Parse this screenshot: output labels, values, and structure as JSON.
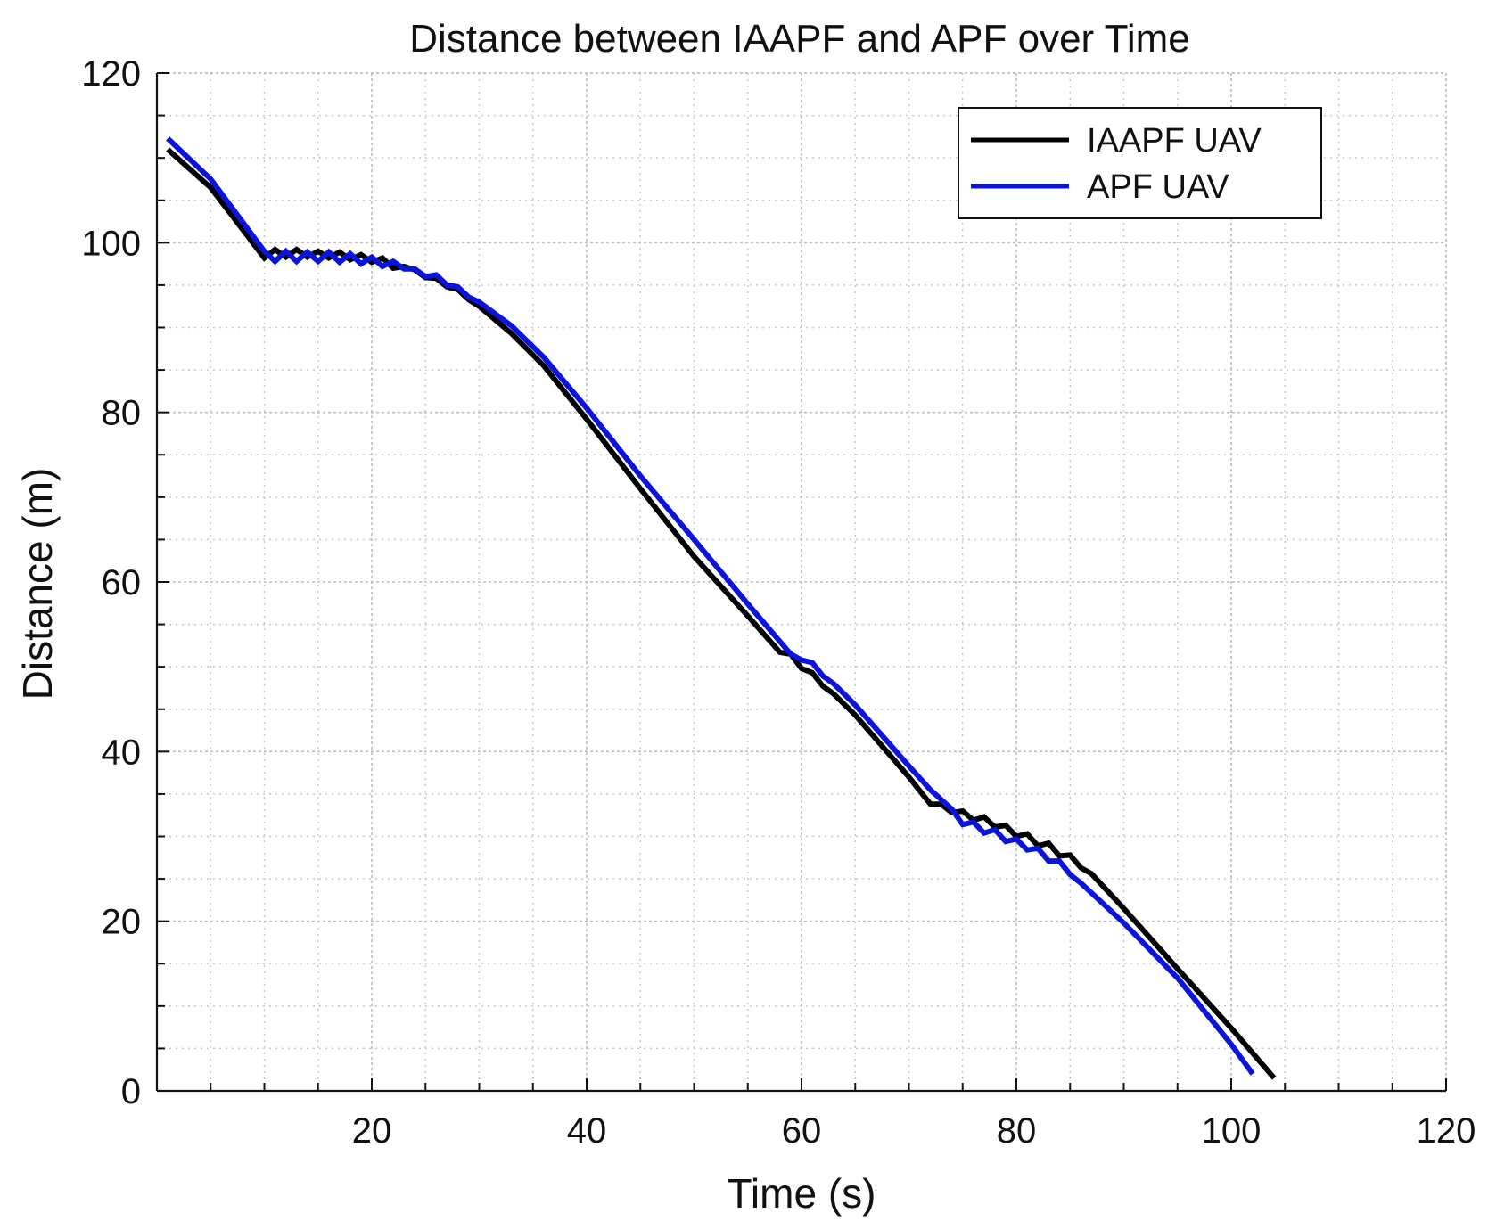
{
  "chart_data": {
    "type": "line",
    "title": "Distance between IAAPF and APF over Time",
    "xlabel": "Time (s)",
    "ylabel": "Distance (m)",
    "xlim": [
      0,
      120
    ],
    "ylim": [
      0,
      120
    ],
    "xticks": [
      20,
      40,
      60,
      80,
      100,
      120
    ],
    "yticks": [
      0,
      20,
      40,
      60,
      80,
      100,
      120
    ],
    "x_minor_step": 5,
    "y_minor_step": 5,
    "grid": true,
    "legend_position": "top-right",
    "series": [
      {
        "name": "IAAPF UAV",
        "color": "#000000",
        "points": [
          [
            1,
            111
          ],
          [
            5,
            106.5
          ],
          [
            10,
            98.2
          ],
          [
            11,
            99.2
          ],
          [
            12,
            98.3
          ],
          [
            13,
            99.2
          ],
          [
            14,
            98.3
          ],
          [
            15,
            99.0
          ],
          [
            16,
            98.2
          ],
          [
            17,
            98.9
          ],
          [
            18,
            98.0
          ],
          [
            19,
            98.6
          ],
          [
            20,
            97.7
          ],
          [
            21,
            98.2
          ],
          [
            22,
            97.0
          ],
          [
            23,
            97.2
          ],
          [
            24,
            96.8
          ],
          [
            25,
            95.9
          ],
          [
            26,
            95.8
          ],
          [
            27,
            94.8
          ],
          [
            28,
            94.5
          ],
          [
            29,
            93.3
          ],
          [
            30,
            92.5
          ],
          [
            33,
            89.3
          ],
          [
            36,
            85.5
          ],
          [
            40,
            79.2
          ],
          [
            45,
            71.0
          ],
          [
            50,
            63.0
          ],
          [
            55,
            56.0
          ],
          [
            58,
            51.7
          ],
          [
            59,
            51.5
          ],
          [
            60,
            49.8
          ],
          [
            61,
            49.3
          ],
          [
            62,
            47.7
          ],
          [
            63,
            46.8
          ],
          [
            65,
            44.3
          ],
          [
            70,
            37.0
          ],
          [
            72,
            33.8
          ],
          [
            73,
            33.8
          ],
          [
            74,
            32.8
          ],
          [
            75,
            33.0
          ],
          [
            76,
            31.9
          ],
          [
            77,
            32.3
          ],
          [
            78,
            31.1
          ],
          [
            79,
            31.3
          ],
          [
            80,
            30.0
          ],
          [
            81,
            30.3
          ],
          [
            82,
            28.9
          ],
          [
            83,
            29.2
          ],
          [
            84,
            27.7
          ],
          [
            85,
            27.8
          ],
          [
            86,
            26.3
          ],
          [
            87,
            25.6
          ],
          [
            90,
            21.5
          ],
          [
            95,
            14.4
          ],
          [
            100,
            7.4
          ],
          [
            104,
            1.5
          ]
        ]
      },
      {
        "name": "APF UAV",
        "color": "#0a14dc",
        "points": [
          [
            1,
            112.3
          ],
          [
            5,
            107.5
          ],
          [
            10,
            99.0
          ],
          [
            11,
            97.8
          ],
          [
            12,
            99.0
          ],
          [
            13,
            97.8
          ],
          [
            14,
            98.9
          ],
          [
            15,
            97.8
          ],
          [
            16,
            98.9
          ],
          [
            17,
            97.7
          ],
          [
            18,
            98.7
          ],
          [
            19,
            97.5
          ],
          [
            20,
            98.3
          ],
          [
            21,
            97.2
          ],
          [
            22,
            97.8
          ],
          [
            23,
            96.9
          ],
          [
            24,
            96.9
          ],
          [
            25,
            96.0
          ],
          [
            26,
            96.2
          ],
          [
            27,
            95.0
          ],
          [
            28,
            94.8
          ],
          [
            29,
            93.6
          ],
          [
            30,
            93.0
          ],
          [
            33,
            90.2
          ],
          [
            36,
            86.5
          ],
          [
            40,
            80.5
          ],
          [
            45,
            72.5
          ],
          [
            50,
            65.0
          ],
          [
            55,
            57.4
          ],
          [
            59,
            51.5
          ],
          [
            60,
            50.8
          ],
          [
            61,
            50.5
          ],
          [
            62,
            48.9
          ],
          [
            63,
            48.0
          ],
          [
            65,
            45.5
          ],
          [
            70,
            38.3
          ],
          [
            72,
            35.5
          ],
          [
            74,
            33.2
          ],
          [
            75,
            31.4
          ],
          [
            76,
            31.7
          ],
          [
            77,
            30.4
          ],
          [
            78,
            30.8
          ],
          [
            79,
            29.4
          ],
          [
            80,
            29.7
          ],
          [
            81,
            28.4
          ],
          [
            82,
            28.6
          ],
          [
            83,
            27.1
          ],
          [
            84,
            27.1
          ],
          [
            85,
            25.5
          ],
          [
            86,
            24.5
          ],
          [
            90,
            19.8
          ],
          [
            95,
            13.3
          ],
          [
            100,
            5.5
          ],
          [
            102,
            2.0
          ]
        ]
      }
    ]
  }
}
